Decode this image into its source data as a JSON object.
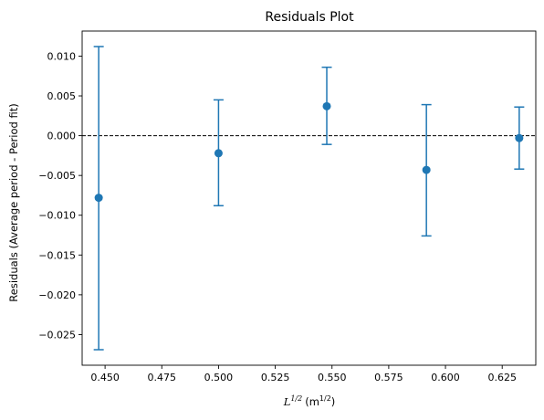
{
  "chart_data": {
    "type": "scatter",
    "title": "Residuals Plot",
    "xlabel": {
      "symbol": "L",
      "exponent": "1/2",
      "unit_open": "(m",
      "unit_exponent": "1/2",
      "unit_close": ")"
    },
    "ylabel": "Residuals (Average period - Period fit)",
    "xlim": [
      0.4399,
      0.6398
    ],
    "ylim": [
      -0.02885,
      0.01315
    ],
    "x_ticks": [
      0.45,
      0.475,
      0.5,
      0.525,
      0.55,
      0.575,
      0.6,
      0.625
    ],
    "x_tick_labels": [
      "0.450",
      "0.475",
      "0.500",
      "0.525",
      "0.550",
      "0.575",
      "0.600",
      "0.625"
    ],
    "y_ticks": [
      0.01,
      0.005,
      0.0,
      -0.005,
      -0.01,
      -0.015,
      -0.02,
      -0.025
    ],
    "y_tick_labels": [
      "0.010",
      "0.005",
      "0.000",
      "−0.005",
      "−0.010",
      "−0.015",
      "−0.020",
      "−0.025"
    ],
    "grid": false,
    "reference_line": {
      "y": 0.0,
      "style": "dashed",
      "color": "#000000"
    },
    "series": [
      {
        "color": "#1f77b4",
        "points": [
          {
            "x": 0.4472,
            "y": -0.0078,
            "err_low": -0.0269,
            "err_high": 0.0112
          },
          {
            "x": 0.5,
            "y": -0.0022,
            "err_low": -0.0088,
            "err_high": 0.0045
          },
          {
            "x": 0.5477,
            "y": 0.0037,
            "err_low": -0.0011,
            "err_high": 0.0086
          },
          {
            "x": 0.5916,
            "y": -0.0043,
            "err_low": -0.0126,
            "err_high": 0.0039
          },
          {
            "x": 0.6325,
            "y": -0.0003,
            "err_low": -0.0042,
            "err_high": 0.0036
          }
        ]
      }
    ]
  }
}
